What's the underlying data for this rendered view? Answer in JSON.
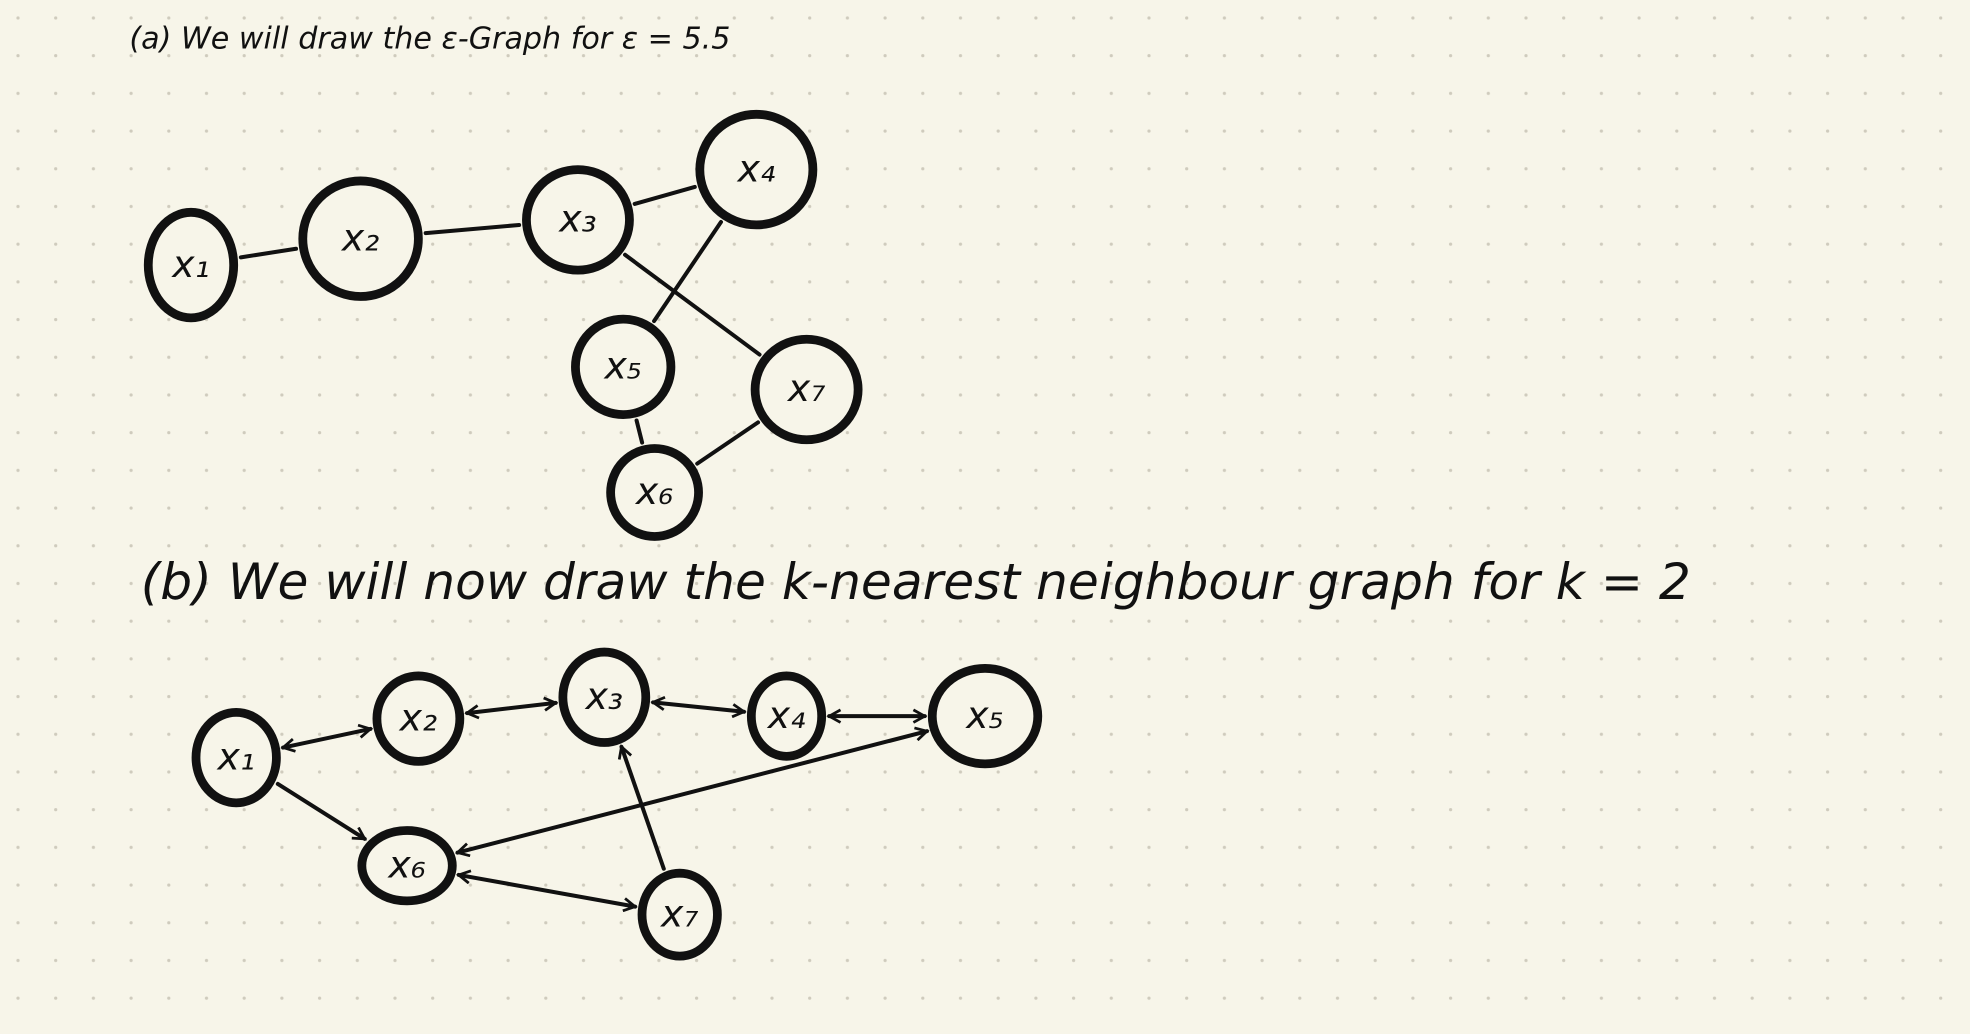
{
  "part_a": {
    "title": "(a) We will draw the ε-Graph for ε = 5.5",
    "nodes": [
      {
        "label": "x₁"
      },
      {
        "label": "x₂"
      },
      {
        "label": "x₃"
      },
      {
        "label": "x₄"
      },
      {
        "label": "x₅"
      },
      {
        "label": "x₆"
      },
      {
        "label": "x₇"
      }
    ]
  },
  "part_b": {
    "title": "(b) We will now draw the k-nearest neighbour graph for k = 2",
    "nodes": [
      {
        "label": "x₁"
      },
      {
        "label": "x₂"
      },
      {
        "label": "x₃"
      },
      {
        "label": "x₄"
      },
      {
        "label": "x₅"
      },
      {
        "label": "x₆"
      },
      {
        "label": "x₇"
      }
    ]
  }
}
